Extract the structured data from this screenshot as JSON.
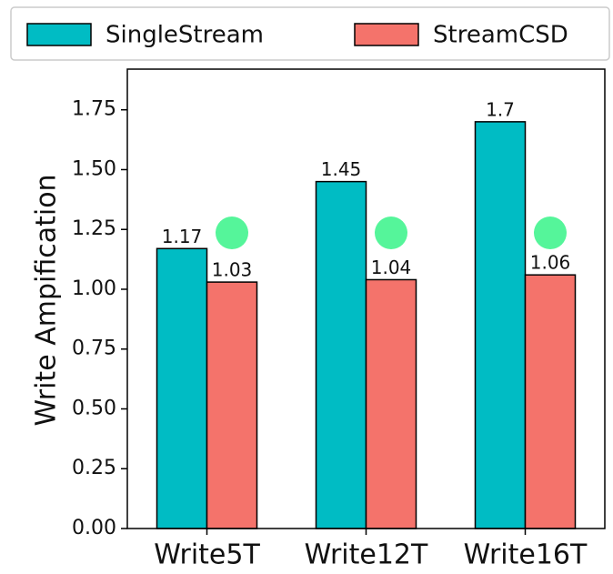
{
  "chart_data": {
    "type": "bar",
    "ylabel": "Write Ampification",
    "categories": [
      "Write5T",
      "Write12T",
      "Write16T"
    ],
    "series": [
      {
        "name": "SingleStream",
        "color": "#00bcc4",
        "values": [
          1.17,
          1.45,
          1.7
        ]
      },
      {
        "name": "StreamCSD",
        "color": "#f4736b",
        "values": [
          1.03,
          1.04,
          1.06
        ]
      }
    ],
    "ylim": [
      0,
      1.92
    ],
    "yticks": [
      {
        "value": 0,
        "label": "0.00"
      },
      {
        "value": 0.25,
        "label": "0.25"
      },
      {
        "value": 0.5,
        "label": "0.50"
      },
      {
        "value": 0.75,
        "label": "0.75"
      },
      {
        "value": 1.0,
        "label": "1.00"
      },
      {
        "value": 1.25,
        "label": "1.25"
      },
      {
        "value": 1.5,
        "label": "1.50"
      },
      {
        "value": 1.75,
        "label": "1.75"
      }
    ],
    "legend": "top"
  }
}
